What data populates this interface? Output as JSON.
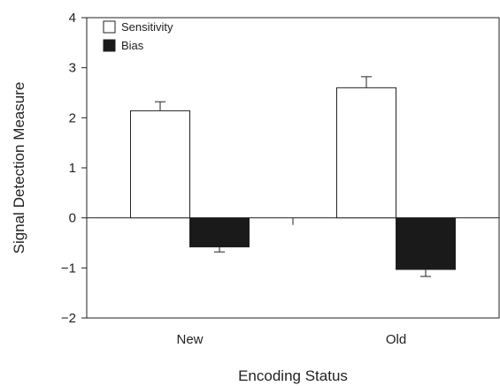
{
  "chart_data": {
    "type": "bar",
    "title": "",
    "xlabel": "Encoding Status",
    "ylabel": "Signal Detection Measure",
    "categories": [
      "New",
      "Old"
    ],
    "ylim": [
      -2,
      4
    ],
    "yticks": [
      -2,
      -1,
      0,
      1,
      2,
      3,
      4
    ],
    "ytick_labels": [
      "−2",
      "−1",
      "0",
      "1",
      "2",
      "3",
      "4"
    ],
    "grid": false,
    "legend_position": "top-left",
    "series": [
      {
        "name": "Sensitivity",
        "values": [
          2.14,
          2.6
        ],
        "errors": [
          0.18,
          0.22
        ],
        "color": "#ffffff"
      },
      {
        "name": "Bias",
        "values": [
          -0.58,
          -1.03
        ],
        "errors": [
          0.1,
          0.14
        ],
        "color": "#1a1a1a"
      }
    ]
  }
}
